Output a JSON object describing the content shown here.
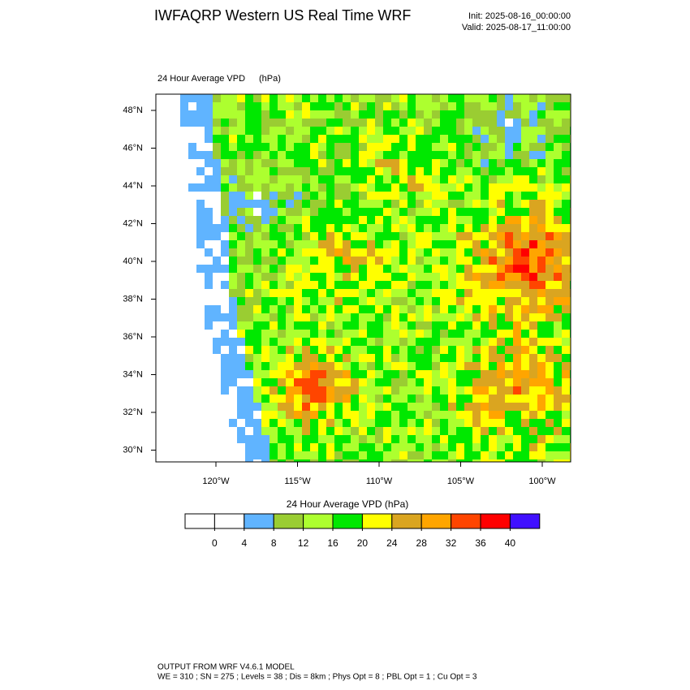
{
  "header": {
    "title": "IWFAQRP Western US Real Time WRF",
    "init": "Init: 2025-08-16_00:00:00",
    "valid": "Valid: 2025-08-17_11:00:00"
  },
  "map": {
    "subtitle": "24 Hour Average VPD",
    "units": "(hPa)",
    "lat_labels": [
      "48°N",
      "46°N",
      "44°N",
      "42°N",
      "40°N",
      "38°N",
      "36°N",
      "34°N",
      "32°N",
      "30°N"
    ],
    "lon_labels": [
      "120°W",
      "115°W",
      "110°W",
      "105°W",
      "100°W"
    ]
  },
  "colorbar": {
    "title": "24 Hour Average VPD  (hPa)",
    "colors": [
      "#ffffff",
      "#ffffff",
      "#60b4ff",
      "#9acd32",
      "#adff2f",
      "#00e800",
      "#ffff00",
      "#daa520",
      "#ffa500",
      "#ff4500",
      "#ff0000",
      "#4010ff"
    ],
    "ticks": [
      0,
      4,
      8,
      12,
      16,
      20,
      24,
      28,
      32,
      36,
      40
    ]
  },
  "footer": {
    "line1": "OUTPUT FROM WRF V4.6.1 MODEL",
    "line2": "WE = 310 ; SN = 275 ; Levels = 38 ; Dis = 8km ; Phys Opt = 8 ; PBL Opt = 1 ; Cu Opt = 3"
  }
}
